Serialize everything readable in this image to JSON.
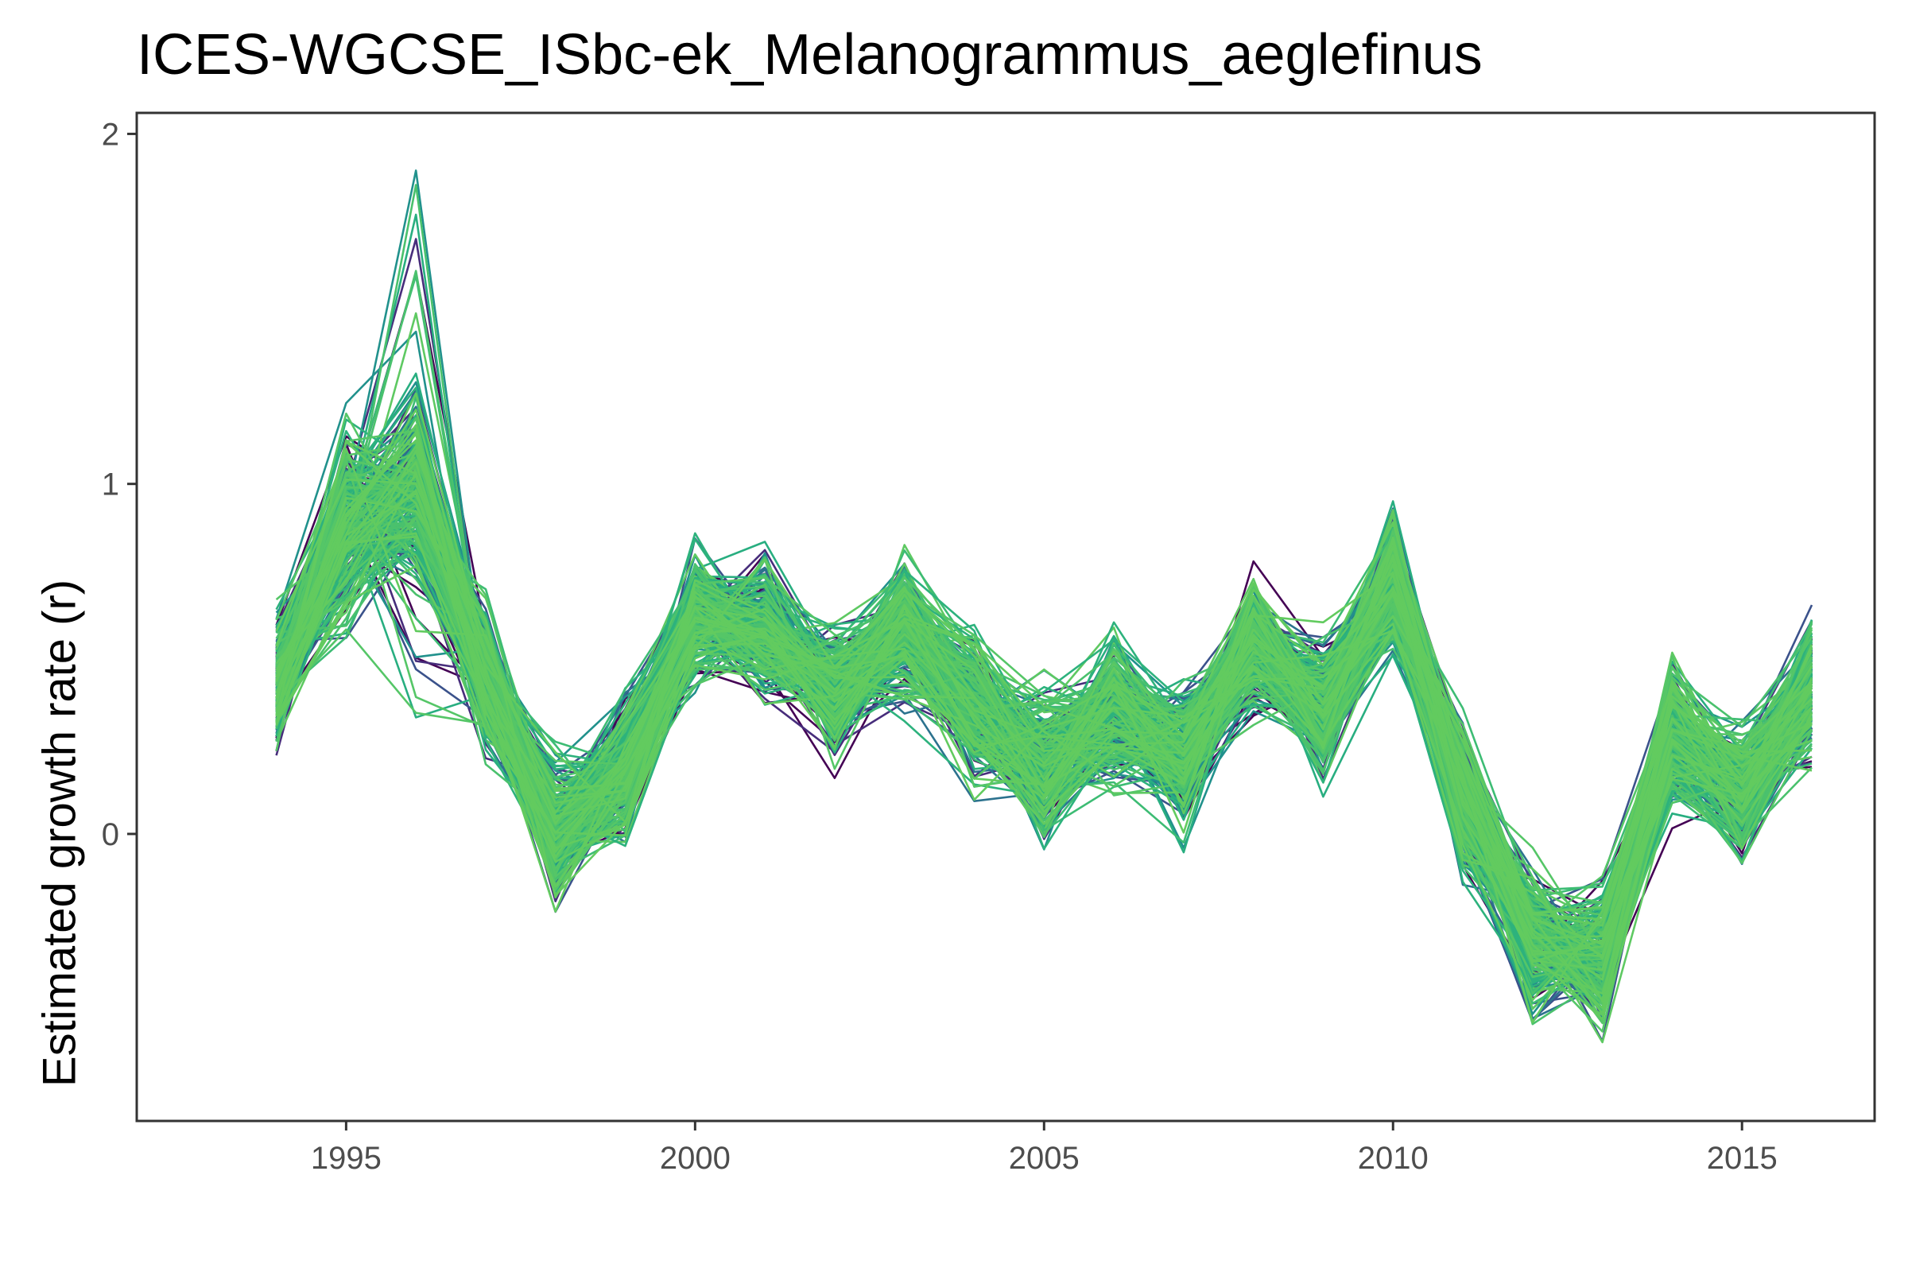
{
  "chart_data": {
    "type": "line",
    "title": "ICES-WGCSE_ISbc-ek_Melanogrammus_aeglefinus",
    "ylabel": "Estimated growth rate (r)",
    "xlabel": "",
    "x": [
      1994,
      1995,
      1996,
      1997,
      1998,
      1999,
      2000,
      2001,
      2002,
      2003,
      2004,
      2005,
      2006,
      2007,
      2008,
      2009,
      2010,
      2011,
      2012,
      2013,
      2014,
      2015,
      2016
    ],
    "series_center": [
      0.45,
      0.88,
      0.98,
      0.45,
      0.0,
      0.18,
      0.62,
      0.58,
      0.4,
      0.58,
      0.35,
      0.2,
      0.35,
      0.22,
      0.55,
      0.35,
      0.72,
      0.1,
      -0.3,
      -0.36,
      0.28,
      0.12,
      0.42
    ],
    "series_count": 260,
    "xlim": [
      1992.0,
      2016.9
    ],
    "ylim": [
      -0.82,
      2.06
    ],
    "xticks": [
      1995,
      2000,
      2005,
      2010,
      2015
    ],
    "yticks": [
      0,
      1,
      2
    ],
    "grid": false,
    "legend": "none",
    "colors": [
      "#440154",
      "#472d7b",
      "#3b528b",
      "#2c728e",
      "#21918c",
      "#28ae80",
      "#5ec962",
      "#3dbc74",
      "#2db27d",
      "#4ac16d",
      "#55c667",
      "#62cb5f"
    ]
  }
}
